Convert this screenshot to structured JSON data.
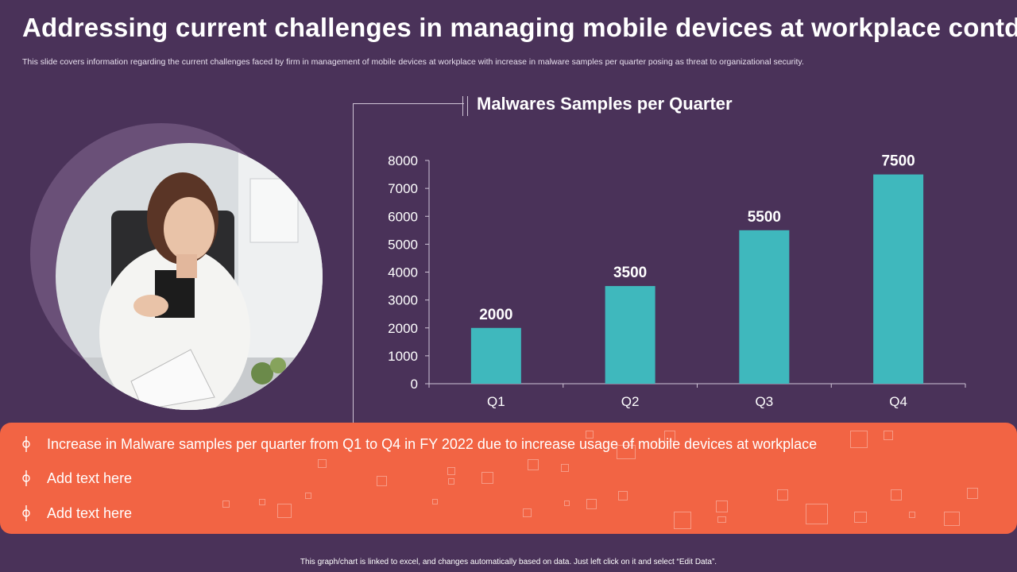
{
  "slide": {
    "title": "Addressing current challenges in managing mobile devices at workplace contd..",
    "subtitle": "This slide covers information regarding the current challenges faced by firm in management of mobile devices at workplace with increase in malware samples per quarter posing as threat to organizational security.",
    "footer": "This graph/chart is linked to excel, and changes automatically based on data. Just left click on it and select “Edit Data”."
  },
  "bullets": [
    "Increase in Malware  samples per quarter from Q1 to Q4 in FY 2022 due to increase usage of mobile devices at workplace",
    "Add text here",
    "Add text here"
  ],
  "colors": {
    "background": "#4a3259",
    "bar": "#3fb8bd",
    "panel": "#f26444"
  },
  "chart_data": {
    "type": "bar",
    "title": "Malwares Samples per Quarter",
    "categories": [
      "Q1",
      "Q2",
      "Q3",
      "Q4"
    ],
    "values": [
      2000,
      3500,
      5500,
      7500
    ],
    "data_labels": [
      "2000",
      "3500",
      "5500",
      "7500"
    ],
    "yticks": [
      0,
      1000,
      2000,
      3000,
      4000,
      5000,
      6000,
      7000,
      8000
    ],
    "ylim": [
      0,
      8000
    ],
    "xlabel": "",
    "ylabel": "",
    "grid": false,
    "legend": "none"
  }
}
